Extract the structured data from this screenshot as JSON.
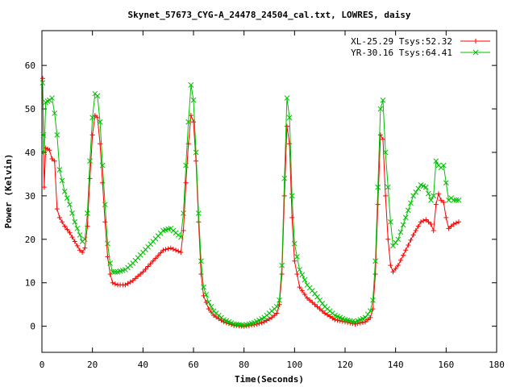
{
  "chart_data": {
    "type": "line",
    "title": "Skynet_57673_CYG-A_24478_24504_cal.txt, LOWRES, daisy",
    "xlabel": "Time(Seconds)",
    "ylabel": "Power (Kelvin)",
    "xlim": [
      0,
      180
    ],
    "ylim": [
      -6,
      68
    ],
    "xticks": [
      0,
      20,
      40,
      60,
      80,
      100,
      120,
      140,
      160,
      180
    ],
    "yticks": [
      0,
      10,
      20,
      30,
      40,
      50,
      60
    ],
    "xtick_labels": [
      "0",
      "20",
      "40",
      "60",
      "80",
      "100",
      "120",
      "140",
      "160",
      "180"
    ],
    "ytick_labels": [
      "0",
      "10",
      "20",
      "30",
      "40",
      "50",
      "60"
    ],
    "grid": false,
    "legend_position": "top-right",
    "series": [
      {
        "name": "XL-25.29 Tsys:52.32",
        "color": "#ff0000",
        "marker": "plus",
        "points": [
          [
            0.3,
            57
          ],
          [
            0.6,
            44
          ],
          [
            0.9,
            32
          ],
          [
            1.5,
            41
          ],
          [
            3,
            40.5
          ],
          [
            4,
            38.5
          ],
          [
            5,
            38
          ],
          [
            6,
            27
          ],
          [
            7,
            25
          ],
          [
            9,
            23
          ],
          [
            11,
            21.5
          ],
          [
            13,
            19.5
          ],
          [
            15,
            17.5
          ],
          [
            16,
            17
          ],
          [
            17,
            18
          ],
          [
            18,
            23
          ],
          [
            19,
            34
          ],
          [
            20,
            44
          ],
          [
            21,
            48.5
          ],
          [
            22,
            48
          ],
          [
            23,
            42
          ],
          [
            24,
            33
          ],
          [
            25,
            24
          ],
          [
            26,
            16
          ],
          [
            27,
            12
          ],
          [
            28,
            10
          ],
          [
            30,
            9.5
          ],
          [
            33,
            9.5
          ],
          [
            36,
            10.5
          ],
          [
            40,
            12.5
          ],
          [
            44,
            15
          ],
          [
            48,
            17.5
          ],
          [
            51,
            18
          ],
          [
            53,
            17.5
          ],
          [
            55,
            17
          ],
          [
            56,
            22
          ],
          [
            57,
            33
          ],
          [
            58,
            42
          ],
          [
            59,
            48.5
          ],
          [
            60,
            47
          ],
          [
            61,
            38
          ],
          [
            62,
            24
          ],
          [
            63,
            12
          ],
          [
            64,
            7
          ],
          [
            66,
            4
          ],
          [
            68,
            2.5
          ],
          [
            72,
            1
          ],
          [
            76,
            0.2
          ],
          [
            80,
            0
          ],
          [
            84,
            0.3
          ],
          [
            88,
            1
          ],
          [
            91,
            2
          ],
          [
            93,
            3
          ],
          [
            94,
            5
          ],
          [
            95,
            12
          ],
          [
            96,
            30
          ],
          [
            97,
            46
          ],
          [
            98,
            42
          ],
          [
            99,
            25
          ],
          [
            100,
            15
          ],
          [
            102,
            9
          ],
          [
            105,
            6.5
          ],
          [
            108,
            5
          ],
          [
            112,
            3
          ],
          [
            116,
            1.5
          ],
          [
            120,
            1
          ],
          [
            124,
            0.5
          ],
          [
            128,
            1
          ],
          [
            130,
            2
          ],
          [
            131,
            4
          ],
          [
            132,
            12
          ],
          [
            133,
            28
          ],
          [
            134,
            44
          ],
          [
            135,
            43
          ],
          [
            136,
            30
          ],
          [
            137,
            20
          ],
          [
            138,
            14
          ],
          [
            139,
            12.5
          ],
          [
            141,
            14
          ],
          [
            144,
            17.5
          ],
          [
            147,
            21
          ],
          [
            150,
            24
          ],
          [
            152,
            24.5
          ],
          [
            154,
            23.5
          ],
          [
            155,
            22
          ],
          [
            156,
            28
          ],
          [
            157,
            30.5
          ],
          [
            158,
            29
          ],
          [
            159,
            28.5
          ],
          [
            160,
            25
          ],
          [
            161,
            22.5
          ],
          [
            162,
            23
          ],
          [
            163,
            23.5
          ],
          [
            165,
            24
          ]
        ]
      },
      {
        "name": "YR-30.16 Tsys:64.41",
        "color": "#00c000",
        "marker": "cross",
        "points": [
          [
            0.3,
            56
          ],
          [
            0.6,
            44
          ],
          [
            0.9,
            40
          ],
          [
            1.5,
            51.5
          ],
          [
            3,
            52
          ],
          [
            4,
            52.5
          ],
          [
            5,
            49
          ],
          [
            6,
            44
          ],
          [
            7,
            36
          ],
          [
            9,
            31
          ],
          [
            11,
            28
          ],
          [
            13,
            24
          ],
          [
            15,
            21
          ],
          [
            16,
            19.5
          ],
          [
            17,
            20
          ],
          [
            18,
            26
          ],
          [
            19,
            38
          ],
          [
            20,
            48
          ],
          [
            21,
            53.5
          ],
          [
            22,
            53
          ],
          [
            23,
            47
          ],
          [
            24,
            37
          ],
          [
            25,
            28
          ],
          [
            26,
            19
          ],
          [
            27,
            14.5
          ],
          [
            28,
            12.5
          ],
          [
            30,
            12.5
          ],
          [
            33,
            13
          ],
          [
            36,
            14.5
          ],
          [
            40,
            17
          ],
          [
            44,
            19.5
          ],
          [
            48,
            22
          ],
          [
            51,
            22.5
          ],
          [
            53,
            21.5
          ],
          [
            55,
            20.5
          ],
          [
            56,
            26
          ],
          [
            57,
            37
          ],
          [
            58,
            47
          ],
          [
            59,
            55.5
          ],
          [
            60,
            52
          ],
          [
            61,
            40
          ],
          [
            62,
            26
          ],
          [
            63,
            15
          ],
          [
            64,
            9
          ],
          [
            66,
            5.5
          ],
          [
            68,
            3.5
          ],
          [
            72,
            1.5
          ],
          [
            76,
            0.5
          ],
          [
            80,
            0.2
          ],
          [
            84,
            0.8
          ],
          [
            88,
            2
          ],
          [
            91,
            3.5
          ],
          [
            93,
            4.5
          ],
          [
            94,
            6
          ],
          [
            95,
            14
          ],
          [
            96,
            34
          ],
          [
            97,
            52.5
          ],
          [
            98,
            48
          ],
          [
            99,
            30
          ],
          [
            100,
            19
          ],
          [
            102,
            13
          ],
          [
            105,
            9.5
          ],
          [
            108,
            7.5
          ],
          [
            112,
            4.5
          ],
          [
            116,
            2.5
          ],
          [
            120,
            1.5
          ],
          [
            124,
            1
          ],
          [
            128,
            2
          ],
          [
            130,
            3.5
          ],
          [
            131,
            6
          ],
          [
            132,
            15
          ],
          [
            133,
            32
          ],
          [
            134,
            50
          ],
          [
            135,
            52
          ],
          [
            136,
            40
          ],
          [
            137,
            32
          ],
          [
            138,
            24
          ],
          [
            139,
            18.5
          ],
          [
            141,
            20
          ],
          [
            144,
            25
          ],
          [
            147,
            30
          ],
          [
            150,
            32.5
          ],
          [
            152,
            32
          ],
          [
            154,
            29
          ],
          [
            155,
            30
          ],
          [
            156,
            38
          ],
          [
            157,
            37
          ],
          [
            158,
            36.5
          ],
          [
            159,
            37
          ],
          [
            160,
            33
          ],
          [
            161,
            29
          ],
          [
            162,
            29.5
          ],
          [
            163,
            29
          ],
          [
            165,
            29
          ]
        ]
      }
    ]
  }
}
